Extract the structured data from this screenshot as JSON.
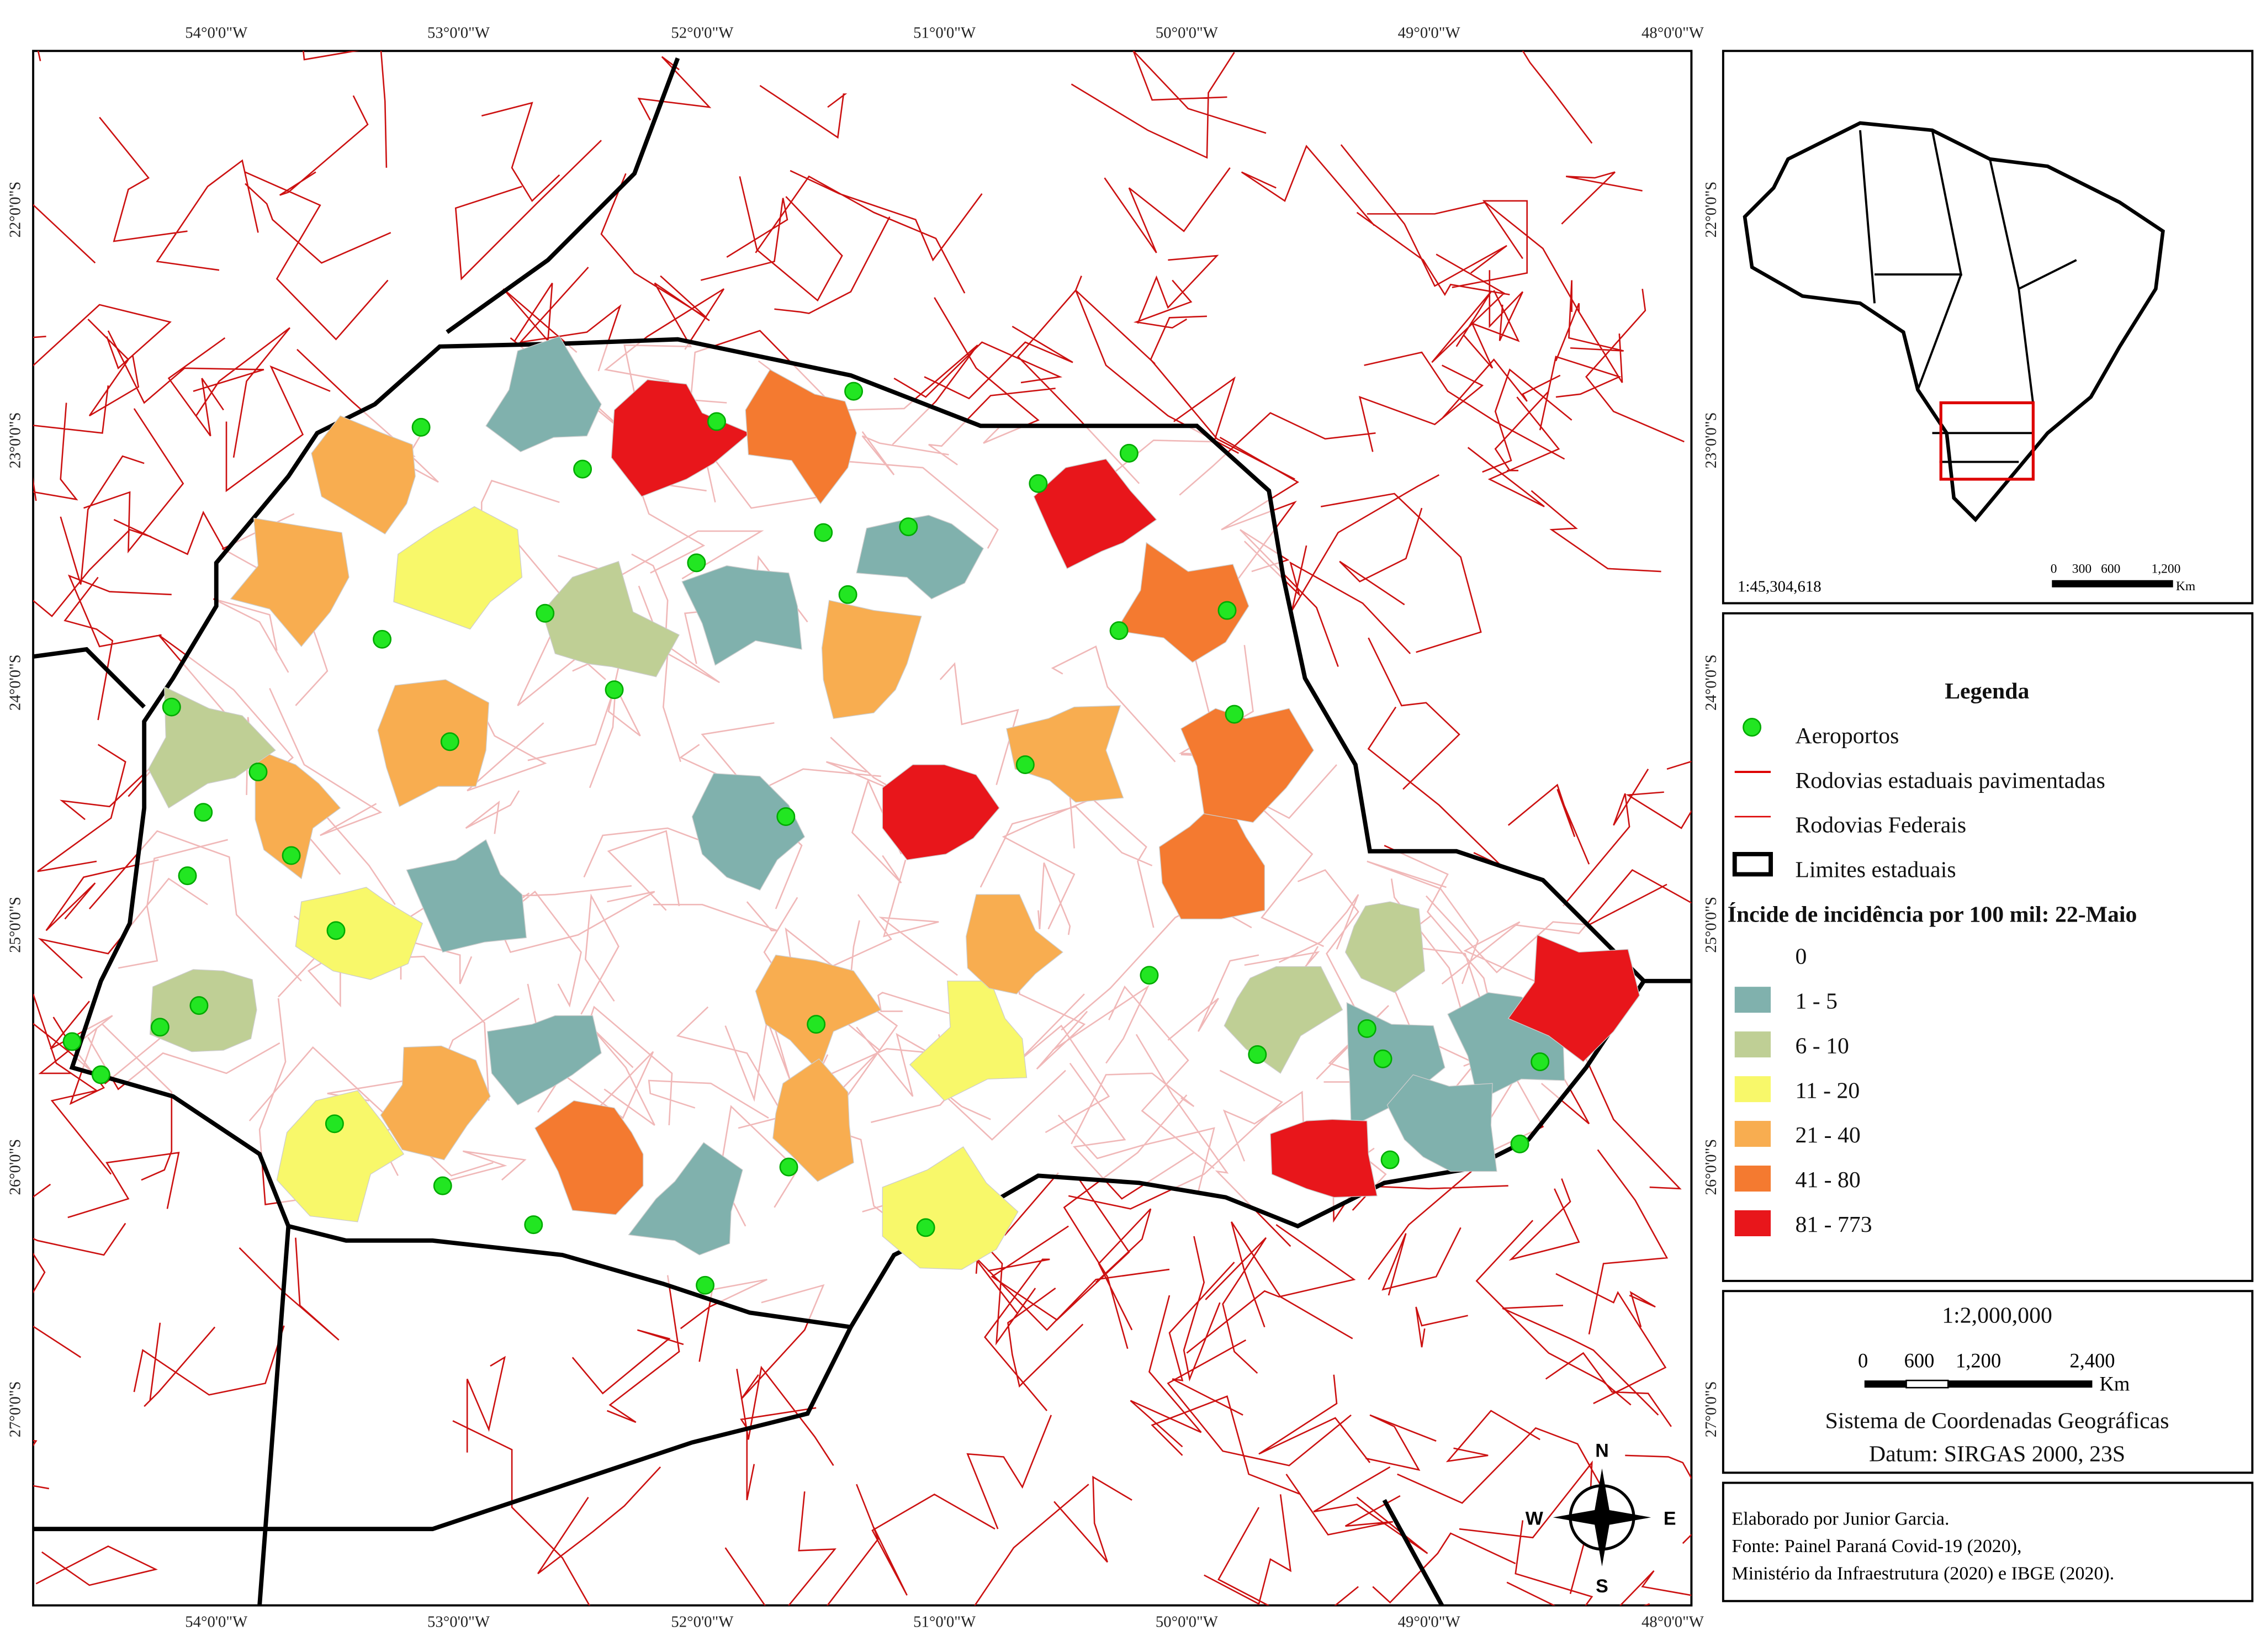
{
  "map": {
    "lon_labels": [
      "54°0'0\"W",
      "53°0'0\"W",
      "52°0'0\"W",
      "51°0'0\"W",
      "50°0'0\"W",
      "49°0'0\"W",
      "48°0'0\"W"
    ],
    "lat_labels": [
      "22°0'0\"S",
      "23°0'0\"S",
      "24°0'0\"S",
      "25°0'0\"S",
      "26°0'0\"S",
      "27°0'0\"S"
    ],
    "compass": {
      "n": "N",
      "s": "S",
      "e": "E",
      "w": "W"
    }
  },
  "inset": {
    "scale": "1:45,304,618",
    "scale_bar": [
      "0",
      "300",
      "600",
      "1,200"
    ],
    "unit": "Km"
  },
  "legend": {
    "title": "Legenda",
    "items": [
      "Aeroportos",
      "Rodovias estaduais pavimentadas",
      "Rodovias Federais",
      "Limites estaduais"
    ],
    "class_title": "Íncide de incidência por 100 mil: 22-Maio",
    "classes": [
      {
        "label": "0",
        "color": "#ffffff"
      },
      {
        "label": "1 - 5",
        "color": "#80b1ad"
      },
      {
        "label": "6 - 10",
        "color": "#bfcf95"
      },
      {
        "label": "11 - 20",
        "color": "#f8f86a"
      },
      {
        "label": "21 - 40",
        "color": "#f8ad50"
      },
      {
        "label": "41 - 80",
        "color": "#f47a30"
      },
      {
        "label": "81 - 773",
        "color": "#e8161b"
      }
    ]
  },
  "scale": {
    "ratio": "1:2,000,000",
    "bar": [
      "0",
      "600",
      "1,200",
      "2,400"
    ],
    "unit": "Km",
    "crs": "Sistema de Coordenadas Geográficas",
    "datum": "Datum: SIRGAS 2000, 23S"
  },
  "credits": [
    "Elaborado por Junior Garcia.",
    "Fonte: Painel Paraná Covid-19 (2020),",
    "Ministério da Infraestrutura (2020) e IBGE (2020)."
  ]
}
